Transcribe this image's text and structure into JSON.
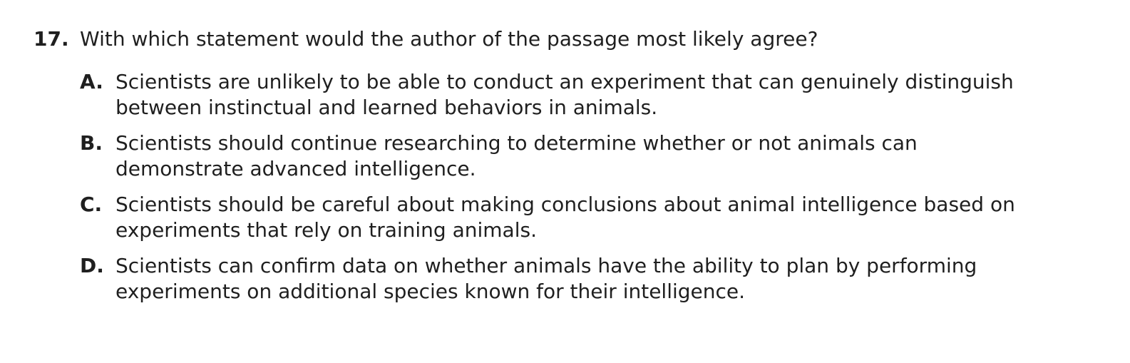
{
  "question": {
    "number": "17.",
    "stem": "With which statement would the author of the passage most likely agree?",
    "choices": [
      {
        "letter": "A.",
        "text": "Scientists are unlikely to be able to conduct an experiment that can genuinely distinguish between instinctual and learned behaviors in animals."
      },
      {
        "letter": "B.",
        "text": "Scientists should continue researching to determine whether or not animals can demonstrate advanced intelligence."
      },
      {
        "letter": "C.",
        "text": "Scientists should be careful about making conclusions about animal intelligence based on experiments that rely on training animals."
      },
      {
        "letter": "D.",
        "text": "Scientists can confirm data on whether animals have the ability to plan by performing experiments on additional species known for their intelligence."
      }
    ]
  }
}
